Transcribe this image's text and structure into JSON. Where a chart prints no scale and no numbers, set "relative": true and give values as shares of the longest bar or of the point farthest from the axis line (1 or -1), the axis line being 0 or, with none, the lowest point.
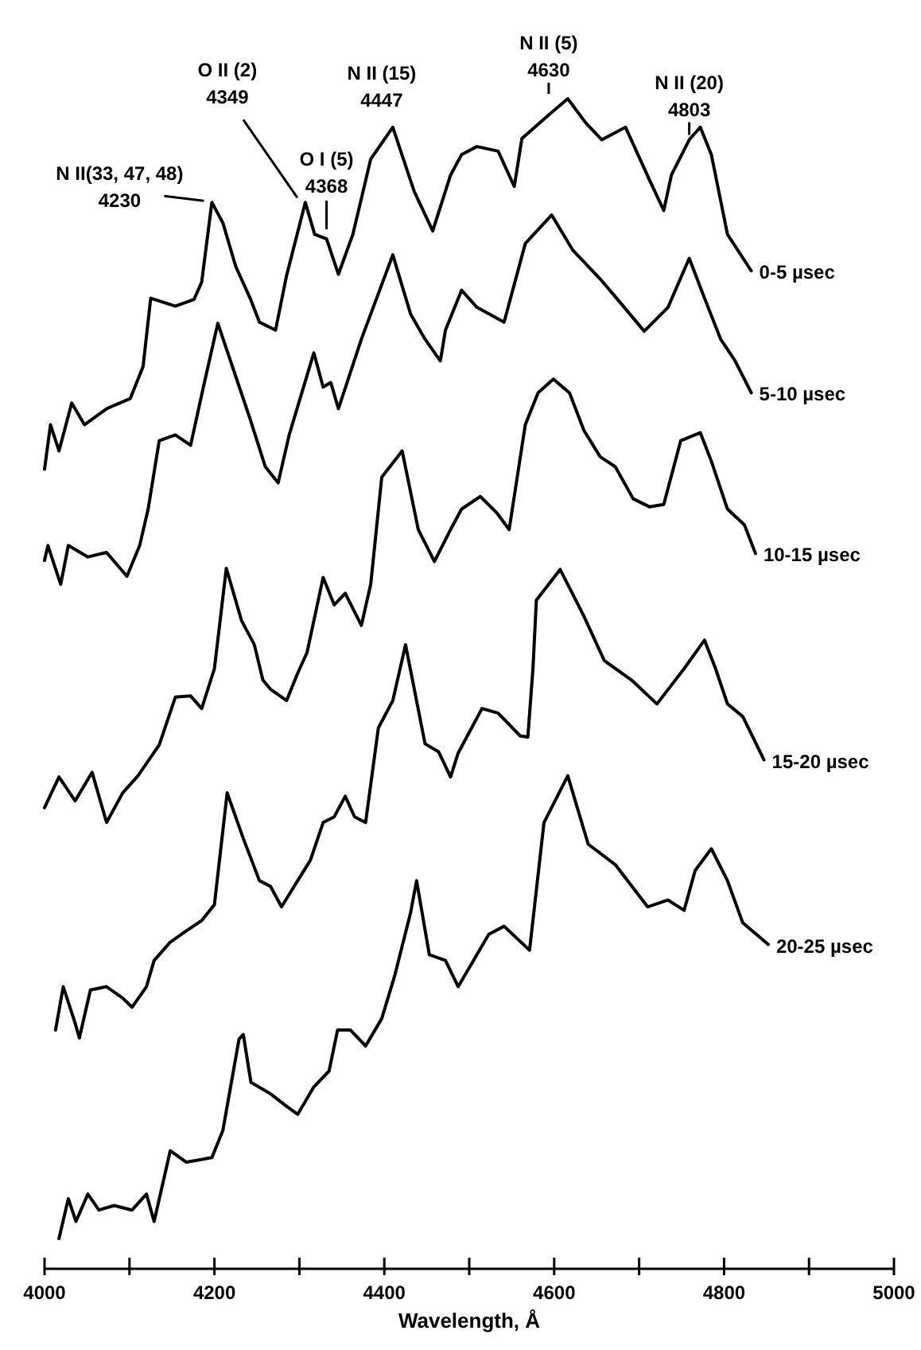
{
  "chart_data": {
    "type": "line",
    "relative": true,
    "xlabel": "Wavelength, Å",
    "xlim": [
      4000,
      5000
    ],
    "xticks": [
      4000,
      {
        "value": 4100,
        "label": null
      },
      4200,
      {
        "value": 4300,
        "label": null
      },
      4400,
      {
        "value": 4500,
        "label": null
      },
      4600,
      {
        "value": 4700,
        "label": null
      },
      4800,
      {
        "value": 4900,
        "label": null
      },
      5000
    ],
    "grid": false,
    "legend": false,
    "annotations": [
      {
        "text": "N II(33, 47, 48)\n4230",
        "x": 4197,
        "y": 0.909
      },
      {
        "text": "O II (2)\n4349",
        "x": 4307,
        "y": 0.909
      },
      {
        "text": "O I (5)\n4368",
        "x": 4332,
        "y": 0.877
      },
      {
        "text": "N II (15)\n4447",
        "x": 4410,
        "y": 0.975
      },
      {
        "text": "N II (5)\n4630",
        "x": 4616,
        "y": 1
      },
      {
        "text": "N II (20)\n4803",
        "x": 4759,
        "y": 0.964
      }
    ],
    "series": [
      {
        "name": "0-5 µsec",
        "color": "#000000",
        "x": [
          4000,
          4007,
          4017,
          4032,
          4047,
          4073,
          4101,
          4116,
          4125,
          4154,
          4176,
          4185,
          4197,
          4210,
          4225,
          4242,
          4253,
          4272,
          4285,
          4307,
          4318,
          4332,
          4346,
          4363,
          4384,
          4410,
          4435,
          4457,
          4478,
          4491,
          4509,
          4534,
          4553,
          4562,
          4594,
          4616,
          4637,
          4656,
          4684,
          4712,
          4729,
          4738,
          4759,
          4772,
          4785,
          4804,
          4832
        ],
        "values": [
          0.675,
          0.714,
          0.691,
          0.733,
          0.714,
          0.728,
          0.737,
          0.765,
          0.825,
          0.818,
          0.824,
          0.839,
          0.909,
          0.891,
          0.853,
          0.825,
          0.804,
          0.797,
          0.845,
          0.909,
          0.881,
          0.877,
          0.846,
          0.881,
          0.947,
          0.975,
          0.919,
          0.884,
          0.933,
          0.951,
          0.958,
          0.954,
          0.923,
          0.965,
          0.986,
          1,
          0.979,
          0.964,
          0.975,
          0.929,
          0.902,
          0.933,
          0.964,
          0.975,
          0.951,
          0.881,
          0.849
        ]
      },
      {
        "name": "5-10 µsec",
        "color": "#000000",
        "x": [
          4000,
          4004,
          4019,
          4028,
          4051,
          4073,
          4097,
          4112,
          4122,
          4135,
          4154,
          4172,
          4187,
          4204,
          4223,
          4242,
          4260,
          4275,
          4288,
          4317,
          4328,
          4337,
          4346,
          4373,
          4391,
          4410,
          4431,
          4448,
          4466,
          4472,
          4491,
          4509,
          4541,
          4566,
          4597,
          4622,
          4654,
          4678,
          4706,
          4734,
          4759,
          4777,
          4796,
          4813,
          4832
        ],
        "values": [
          0.595,
          0.608,
          0.574,
          0.608,
          0.598,
          0.602,
          0.581,
          0.608,
          0.64,
          0.7,
          0.705,
          0.696,
          0.747,
          0.803,
          0.761,
          0.719,
          0.677,
          0.663,
          0.705,
          0.777,
          0.747,
          0.751,
          0.728,
          0.789,
          0.825,
          0.863,
          0.811,
          0.789,
          0.77,
          0.797,
          0.832,
          0.817,
          0.804,
          0.873,
          0.898,
          0.867,
          0.842,
          0.821,
          0.796,
          0.817,
          0.86,
          0.825,
          0.789,
          0.77,
          0.742
        ]
      },
      {
        "name": "10-15 µsec",
        "color": "#000000",
        "x": [
          4000,
          4017,
          4036,
          4056,
          4073,
          4092,
          4110,
          4135,
          4154,
          4172,
          4185,
          4200,
          4214,
          4232,
          4247,
          4257,
          4266,
          4285,
          4298,
          4309,
          4328,
          4341,
          4354,
          4373,
          4384,
          4397,
          4421,
          4440,
          4459,
          4478,
          4491,
          4513,
          4532,
          4547,
          4566,
          4581,
          4599,
          4618,
          4635,
          4654,
          4672,
          4693,
          4712,
          4729,
          4749,
          4772,
          4785,
          4804,
          4824,
          4837
        ],
        "values": [
          0.378,
          0.405,
          0.384,
          0.409,
          0.365,
          0.391,
          0.406,
          0.433,
          0.475,
          0.476,
          0.465,
          0.5,
          0.588,
          0.542,
          0.521,
          0.49,
          0.482,
          0.472,
          0.496,
          0.514,
          0.58,
          0.556,
          0.566,
          0.538,
          0.574,
          0.668,
          0.691,
          0.622,
          0.594,
          0.622,
          0.64,
          0.651,
          0.637,
          0.622,
          0.714,
          0.742,
          0.754,
          0.742,
          0.709,
          0.686,
          0.677,
          0.649,
          0.642,
          0.644,
          0.7,
          0.707,
          0.682,
          0.64,
          0.626,
          0.601
        ]
      },
      {
        "name": "15-20 µsec",
        "color": "#000000",
        "x": [
          4013,
          4022,
          4036,
          4041,
          4054,
          4073,
          4092,
          4103,
          4120,
          4129,
          4148,
          4167,
          4185,
          4200,
          4215,
          4234,
          4253,
          4266,
          4279,
          4298,
          4313,
          4328,
          4341,
          4354,
          4365,
          4378,
          4393,
          4410,
          4425,
          4448,
          4464,
          4478,
          4487,
          4515,
          4534,
          4560,
          4569,
          4575,
          4579,
          4607,
          4635,
          4659,
          4691,
          4721,
          4753,
          4777,
          4790,
          4804,
          4822,
          4847
        ],
        "values": [
          0.183,
          0.221,
          0.189,
          0.176,
          0.218,
          0.221,
          0.211,
          0.203,
          0.221,
          0.244,
          0.26,
          0.27,
          0.279,
          0.293,
          0.391,
          0.351,
          0.314,
          0.309,
          0.291,
          0.314,
          0.332,
          0.365,
          0.37,
          0.388,
          0.37,
          0.365,
          0.448,
          0.472,
          0.521,
          0.434,
          0.427,
          0.405,
          0.426,
          0.465,
          0.461,
          0.441,
          0.44,
          0.5,
          0.56,
          0.587,
          0.546,
          0.507,
          0.49,
          0.469,
          0.5,
          0.525,
          0.5,
          0.469,
          0.458,
          0.42
        ]
      },
      {
        "name": "20-25 µsec",
        "color": "#000000",
        "x": [
          4017,
          4028,
          4037,
          4051,
          4064,
          4082,
          4103,
          4120,
          4129,
          4148,
          4167,
          4197,
          4210,
          4229,
          4234,
          4243,
          4266,
          4285,
          4298,
          4317,
          4335,
          4345,
          4360,
          4378,
          4397,
          4412,
          4431,
          4438,
          4453,
          4472,
          4487,
          4523,
          4541,
          4571,
          4588,
          4616,
          4640,
          4672,
          4710,
          4734,
          4753,
          4766,
          4785,
          4804,
          4822,
          4852
        ],
        "values": [
          0,
          0.035,
          0.015,
          0.039,
          0.025,
          0.029,
          0.025,
          0.039,
          0.015,
          0.077,
          0.067,
          0.071,
          0.095,
          0.175,
          0.179,
          0.137,
          0.127,
          0.116,
          0.109,
          0.133,
          0.147,
          0.183,
          0.183,
          0.169,
          0.193,
          0.23,
          0.286,
          0.314,
          0.249,
          0.244,
          0.221,
          0.267,
          0.274,
          0.253,
          0.365,
          0.406,
          0.346,
          0.328,
          0.291,
          0.297,
          0.288,
          0.323,
          0.342,
          0.314,
          0.277,
          0.258
        ]
      }
    ]
  }
}
